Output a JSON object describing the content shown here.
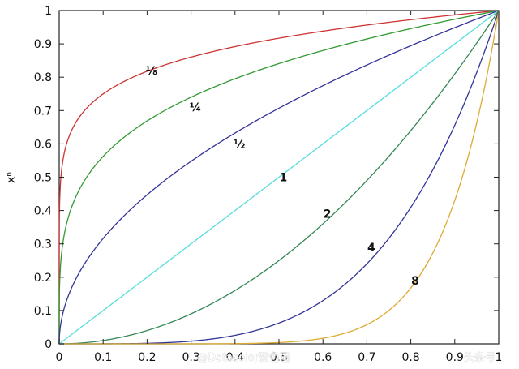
{
  "chart_data": {
    "type": "line",
    "title": "",
    "xlabel": "",
    "ylabel": "xⁿ",
    "xlim": [
      0,
      1
    ],
    "ylim": [
      0,
      1
    ],
    "x_ticks": [
      "0",
      "0.1",
      "0.2",
      "0.3",
      "0.4",
      "0.5",
      "0.6",
      "0.7",
      "0.8",
      "0.9",
      "1"
    ],
    "y_ticks": [
      "0",
      "0.1",
      "0.2",
      "0.3",
      "0.4",
      "0.5",
      "0.6",
      "0.7",
      "0.8",
      "0.9",
      "1"
    ],
    "grid": false,
    "legend": "none",
    "series": [
      {
        "name": "⅛",
        "exponent": 0.125,
        "color": "#cc3333",
        "label_at": {
          "x": 0.21,
          "y": 0.82
        }
      },
      {
        "name": "¼",
        "exponent": 0.25,
        "color": "#339933",
        "label_at": {
          "x": 0.31,
          "y": 0.71
        }
      },
      {
        "name": "½",
        "exponent": 0.5,
        "color": "#333399",
        "label_at": {
          "x": 0.41,
          "y": 0.6
        }
      },
      {
        "name": "1",
        "exponent": 1,
        "color": "#55dddd",
        "label_at": {
          "x": 0.51,
          "y": 0.5
        }
      },
      {
        "name": "2",
        "exponent": 2,
        "color": "#338855",
        "label_at": {
          "x": 0.61,
          "y": 0.39
        }
      },
      {
        "name": "4",
        "exponent": 4,
        "color": "#333399",
        "label_at": {
          "x": 0.71,
          "y": 0.29
        }
      },
      {
        "name": "8",
        "exponent": 8,
        "color": "#ddaa33",
        "label_at": {
          "x": 0.81,
          "y": 0.19
        }
      }
    ]
  },
  "watermark": {
    "text": "@Datacolor爱色丽",
    "brand": "头条号"
  }
}
